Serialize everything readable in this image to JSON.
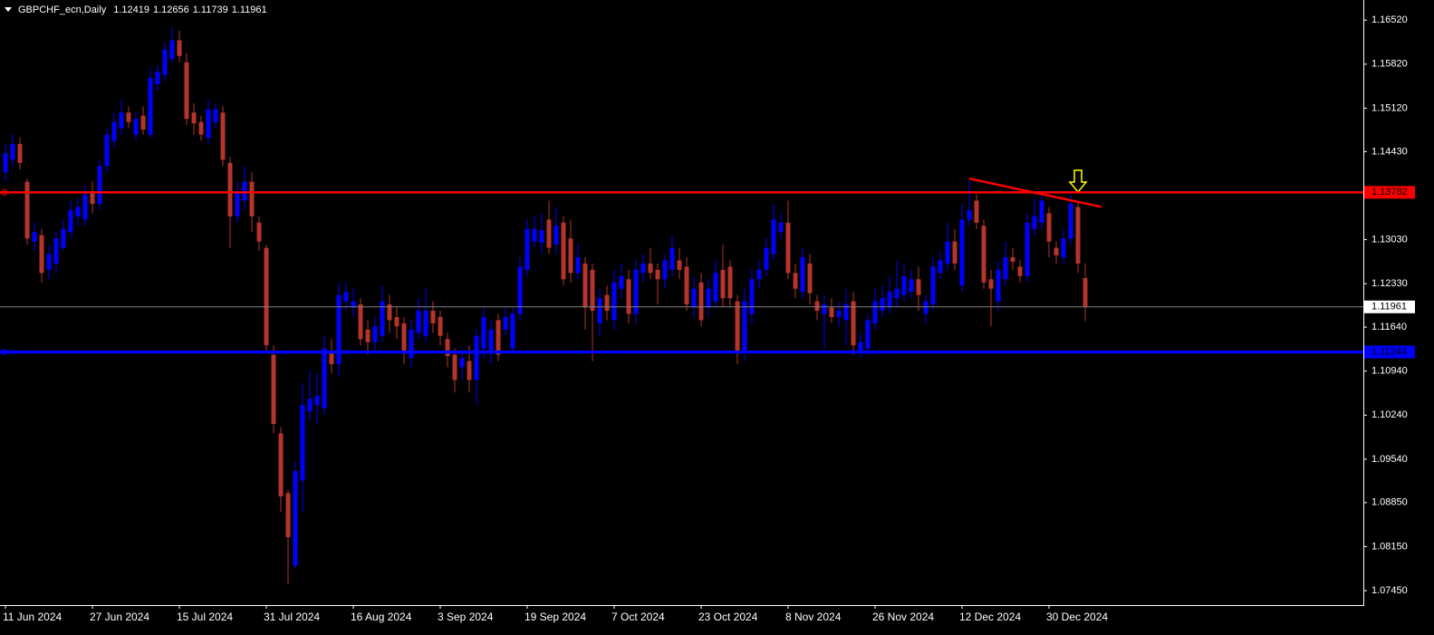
{
  "chart_data": {
    "type": "candlestick",
    "title": "GBPCHF_ecn,Daily",
    "categories": [
      "11 Jun 2024",
      null,
      null,
      null,
      null,
      null,
      null,
      null,
      null,
      null,
      null,
      null,
      "27 Jun 2024",
      null,
      null,
      null,
      null,
      null,
      null,
      null,
      null,
      null,
      null,
      null,
      "15 Jul 2024",
      null,
      null,
      null,
      null,
      null,
      null,
      null,
      null,
      null,
      null,
      null,
      "31 Jul 2024",
      null,
      null,
      null,
      null,
      null,
      null,
      null,
      null,
      null,
      null,
      null,
      "16 Aug 2024",
      null,
      null,
      null,
      null,
      null,
      null,
      null,
      null,
      null,
      null,
      null,
      "3 Sep 2024",
      null,
      null,
      null,
      null,
      null,
      null,
      null,
      null,
      null,
      null,
      null,
      "19 Sep 2024",
      null,
      null,
      null,
      null,
      null,
      null,
      null,
      null,
      null,
      null,
      null,
      "7 Oct 2024",
      null,
      null,
      null,
      null,
      null,
      null,
      null,
      null,
      null,
      null,
      null,
      "23 Oct 2024",
      null,
      null,
      null,
      null,
      null,
      null,
      null,
      null,
      null,
      null,
      null,
      "8 Nov 2024",
      null,
      null,
      null,
      null,
      null,
      null,
      null,
      null,
      null,
      null,
      null,
      "26 Nov 2024",
      null,
      null,
      null,
      null,
      null,
      null,
      null,
      null,
      null,
      null,
      null,
      "12 Dec 2024",
      null,
      null,
      null,
      null,
      null,
      null,
      null,
      null,
      null,
      null,
      null,
      "30 Dec 2024",
      null,
      null,
      null,
      null,
      null
    ],
    "open": [
      1.141,
      1.143,
      1.1455,
      1.1395,
      1.13,
      1.131,
      1.1255,
      1.1265,
      1.129,
      1.1315,
      1.134,
      1.1335,
      1.138,
      1.136,
      1.142,
      1.146,
      1.148,
      1.1505,
      1.147,
      1.15,
      1.147,
      1.155,
      1.1565,
      1.159,
      1.162,
      1.1585,
      1.1505,
      1.149,
      1.1465,
      1.149,
      1.1505,
      1.1425,
      1.134,
      1.1365,
      1.1395,
      1.133,
      1.129,
      1.112,
      1.0995,
      1.09,
      1.0785,
      1.092,
      1.103,
      1.104,
      1.1035,
      1.1125,
      1.1105,
      1.1205,
      1.1195,
      1.12,
      1.116,
      1.114,
      1.115,
      1.12,
      1.118,
      1.117,
      1.1115,
      1.1155,
      1.115,
      1.119,
      1.118,
      1.1145,
      1.112,
      1.11,
      1.111,
      1.108,
      1.113,
      1.1125,
      1.1175,
      1.116,
      1.113,
      1.1185,
      1.1255,
      1.13,
      1.1298,
      1.1335,
      1.1295,
      1.133,
      1.1305,
      1.125,
      1.1265,
      1.1255,
      1.117,
      1.1215,
      1.1175,
      1.1225,
      1.124,
      1.1185,
      1.125,
      1.1265,
      1.1255,
      1.124,
      1.1255,
      1.127,
      1.126,
      1.1195,
      1.1235,
      1.1195,
      1.1205,
      1.1255,
      1.126,
      1.1205,
      1.1125,
      1.1185,
      1.124,
      1.1255,
      1.128,
      1.1315,
      1.133,
      1.125,
      1.122,
      1.1265,
      1.1205,
      1.1185,
      1.1195,
      1.118,
      1.1175,
      1.1205,
      1.1125,
      1.113,
      1.117,
      1.119,
      1.1195,
      1.121,
      1.1215,
      1.122,
      1.124,
      1.1185,
      1.12,
      1.125,
      1.1265,
      1.13,
      1.123,
      1.1335,
      1.1365,
      1.1325,
      1.124,
      1.1205,
      1.124,
      1.1275,
      1.126,
      1.1245,
      1.132,
      1.133,
      1.1345,
      1.129,
      1.1275,
      1.1305,
      1.1355,
      1.12419
    ],
    "high": [
      1.1455,
      1.147,
      1.1465,
      1.14,
      1.133,
      1.132,
      1.1295,
      1.1315,
      1.1335,
      1.1365,
      1.137,
      1.139,
      1.1395,
      1.143,
      1.148,
      1.1505,
      1.1525,
      1.1515,
      1.1505,
      1.1515,
      1.1575,
      1.158,
      1.1615,
      1.164,
      1.1635,
      1.16,
      1.152,
      1.15,
      1.1525,
      1.152,
      1.1515,
      1.1435,
      1.1395,
      1.142,
      1.141,
      1.134,
      1.1295,
      1.1135,
      1.1005,
      1.0905,
      1.095,
      1.1075,
      1.1095,
      1.109,
      1.115,
      1.1145,
      1.1235,
      1.1235,
      1.1225,
      1.121,
      1.1175,
      1.118,
      1.123,
      1.1215,
      1.1195,
      1.118,
      1.1175,
      1.121,
      1.1225,
      1.1205,
      1.119,
      1.1155,
      1.113,
      1.113,
      1.1135,
      1.116,
      1.1195,
      1.1175,
      1.1185,
      1.1195,
      1.1195,
      1.1275,
      1.1335,
      1.134,
      1.1345,
      1.1365,
      1.1355,
      1.134,
      1.1335,
      1.1295,
      1.1275,
      1.1265,
      1.1225,
      1.123,
      1.1255,
      1.1265,
      1.1255,
      1.127,
      1.128,
      1.129,
      1.1265,
      1.128,
      1.131,
      1.129,
      1.1275,
      1.1245,
      1.125,
      1.124,
      1.127,
      1.1295,
      1.127,
      1.1215,
      1.1225,
      1.1255,
      1.127,
      1.1305,
      1.136,
      1.1345,
      1.1365,
      1.1265,
      1.129,
      1.128,
      1.1215,
      1.1215,
      1.121,
      1.1205,
      1.1225,
      1.122,
      1.1155,
      1.1185,
      1.1225,
      1.123,
      1.1245,
      1.127,
      1.1265,
      1.1255,
      1.126,
      1.1215,
      1.1275,
      1.1285,
      1.133,
      1.132,
      1.136,
      1.14,
      1.1375,
      1.1335,
      1.1255,
      1.127,
      1.13,
      1.129,
      1.127,
      1.1345,
      1.137,
      1.1375,
      1.1355,
      1.13,
      1.132,
      1.1375,
      1.1365,
      1.12656
    ],
    "low": [
      1.1395,
      1.142,
      1.1415,
      1.1295,
      1.1285,
      1.1235,
      1.124,
      1.125,
      1.1285,
      1.1305,
      1.1325,
      1.1325,
      1.1345,
      1.135,
      1.141,
      1.145,
      1.147,
      1.148,
      1.146,
      1.147,
      1.1465,
      1.154,
      1.1555,
      1.1585,
      1.1585,
      1.1485,
      1.147,
      1.146,
      1.1455,
      1.148,
      1.142,
      1.129,
      1.133,
      1.135,
      1.1315,
      1.1285,
      1.1125,
      1.0995,
      1.087,
      1.0755,
      1.078,
      1.087,
      1.1015,
      1.101,
      1.1025,
      1.109,
      1.1085,
      1.119,
      1.118,
      1.1135,
      1.112,
      1.1125,
      1.114,
      1.1155,
      1.1145,
      1.1105,
      1.11,
      1.1145,
      1.114,
      1.1155,
      1.1135,
      1.11,
      1.106,
      1.108,
      1.106,
      1.104,
      1.1115,
      1.1105,
      1.111,
      1.115,
      1.1125,
      1.1175,
      1.1245,
      1.129,
      1.128,
      1.128,
      1.128,
      1.123,
      1.1235,
      1.124,
      1.116,
      1.111,
      1.115,
      1.1175,
      1.116,
      1.121,
      1.117,
      1.117,
      1.1235,
      1.124,
      1.12,
      1.1225,
      1.1245,
      1.124,
      1.119,
      1.118,
      1.1165,
      1.118,
      1.1195,
      1.1195,
      1.1195,
      1.1105,
      1.111,
      1.117,
      1.1225,
      1.1245,
      1.127,
      1.1305,
      1.124,
      1.121,
      1.121,
      1.12,
      1.1175,
      1.113,
      1.117,
      1.1165,
      1.1135,
      1.112,
      1.1115,
      1.112,
      1.116,
      1.118,
      1.1185,
      1.1195,
      1.1205,
      1.121,
      1.119,
      1.117,
      1.119,
      1.124,
      1.1255,
      1.1255,
      1.122,
      1.1325,
      1.132,
      1.1225,
      1.1165,
      1.119,
      1.123,
      1.1255,
      1.1235,
      1.1235,
      1.131,
      1.132,
      1.1275,
      1.1265,
      1.1265,
      1.1295,
      1.125,
      1.11739
    ],
    "close": [
      1.144,
      1.1455,
      1.1425,
      1.1305,
      1.1315,
      1.125,
      1.128,
      1.1305,
      1.132,
      1.135,
      1.1355,
      1.1375,
      1.136,
      1.142,
      1.147,
      1.149,
      1.1505,
      1.149,
      1.1495,
      1.1478,
      1.156,
      1.157,
      1.1605,
      1.162,
      1.1595,
      1.1495,
      1.1488,
      1.147,
      1.151,
      1.151,
      1.143,
      1.134,
      1.138,
      1.1395,
      1.134,
      1.13,
      1.1135,
      1.101,
      1.0895,
      1.083,
      1.0935,
      1.104,
      1.105,
      1.1055,
      1.113,
      1.1105,
      1.1215,
      1.122,
      1.1205,
      1.1145,
      1.114,
      1.1165,
      1.1205,
      1.1175,
      1.1165,
      1.1125,
      1.116,
      1.119,
      1.119,
      1.117,
      1.115,
      1.1118,
      1.108,
      1.1115,
      1.108,
      1.115,
      1.118,
      1.116,
      1.112,
      1.118,
      1.1185,
      1.126,
      1.132,
      1.132,
      1.1318,
      1.129,
      1.1325,
      1.124,
      1.125,
      1.1275,
      1.1195,
      1.119,
      1.121,
      1.119,
      1.1235,
      1.1245,
      1.1185,
      1.1255,
      1.1265,
      1.125,
      1.124,
      1.127,
      1.129,
      1.1255,
      1.12,
      1.1225,
      1.1175,
      1.1225,
      1.125,
      1.121,
      1.121,
      1.1125,
      1.1205,
      1.124,
      1.1255,
      1.129,
      1.1335,
      1.133,
      1.125,
      1.1225,
      1.1275,
      1.1218,
      1.119,
      1.12,
      1.118,
      1.119,
      1.12,
      1.1135,
      1.114,
      1.1175,
      1.1205,
      1.121,
      1.122,
      1.1225,
      1.1245,
      1.124,
      1.1215,
      1.1205,
      1.126,
      1.127,
      1.13,
      1.1265,
      1.1335,
      1.135,
      1.133,
      1.1235,
      1.1225,
      1.1255,
      1.1275,
      1.1268,
      1.1245,
      1.133,
      1.134,
      1.1365,
      1.13,
      1.1278,
      1.1305,
      1.136,
      1.1265,
      1.11961
    ],
    "up_color": "#0000ff",
    "down_color": "#b5352d",
    "ylim": [
      1.0722,
      1.1684
    ],
    "yticks": [
      {
        "value": 1.1652,
        "label": "1.16520"
      },
      {
        "value": 1.1582,
        "label": "1.15820"
      },
      {
        "value": 1.1512,
        "label": "1.15120"
      },
      {
        "value": 1.1443,
        "label": "1.14430"
      },
      {
        "value": 1.1303,
        "label": "1.13030"
      },
      {
        "value": 1.1233,
        "label": "1.12330"
      },
      {
        "value": 1.1164,
        "label": "1.11640"
      },
      {
        "value": 1.1094,
        "label": "1.10940"
      },
      {
        "value": 1.1024,
        "label": "1.10240"
      },
      {
        "value": 1.0954,
        "label": "1.09540"
      },
      {
        "value": 1.0885,
        "label": "1.08850"
      },
      {
        "value": 1.0815,
        "label": "1.08150"
      },
      {
        "value": 1.0745,
        "label": "1.07450"
      }
    ],
    "hlines": [
      {
        "value": 1.13782,
        "color": "#ff0000"
      },
      {
        "value": 1.11244,
        "color": "#0000ff"
      }
    ],
    "trendline": {
      "x": [
        133,
        151.25
      ],
      "y": [
        1.14,
        1.1355
      ],
      "color": "#ff0000"
    },
    "grid": false
  }
}
